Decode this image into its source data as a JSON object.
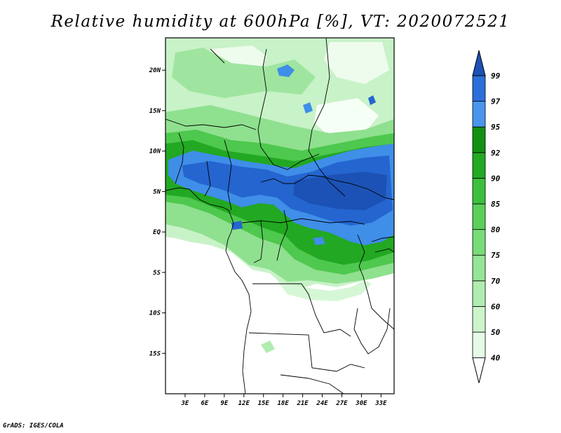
{
  "title": "Relative humidity at 600hPa [%], VT: 2020072521",
  "credit": "GrADS: IGES/COLA",
  "map": {
    "lon_range": [
      0,
      35
    ],
    "lat_range": [
      -20,
      24
    ],
    "lat_ticks": [
      {
        "value": 20,
        "label": "20N"
      },
      {
        "value": 15,
        "label": "15N"
      },
      {
        "value": 10,
        "label": "10N"
      },
      {
        "value": 5,
        "label": "5N"
      },
      {
        "value": 0,
        "label": "EQ"
      },
      {
        "value": -5,
        "label": "5S"
      },
      {
        "value": -10,
        "label": "10S"
      },
      {
        "value": -15,
        "label": "15S"
      }
    ],
    "lon_ticks": [
      {
        "value": 3,
        "label": "3E"
      },
      {
        "value": 6,
        "label": "6E"
      },
      {
        "value": 9,
        "label": "9E"
      },
      {
        "value": 12,
        "label": "12E"
      },
      {
        "value": 15,
        "label": "15E"
      },
      {
        "value": 18,
        "label": "18E"
      },
      {
        "value": 21,
        "label": "21E"
      },
      {
        "value": 24,
        "label": "24E"
      },
      {
        "value": 27,
        "label": "27E"
      },
      {
        "value": 30,
        "label": "30E"
      },
      {
        "value": 33,
        "label": "33E"
      }
    ]
  },
  "colorbar": {
    "levels": [
      "40",
      "50",
      "60",
      "70",
      "75",
      "80",
      "85",
      "90",
      "92",
      "95",
      "97",
      "99"
    ],
    "colors": [
      "#ffffff",
      "#e6fbe6",
      "#ccf5cc",
      "#b0edb0",
      "#95e595",
      "#78dc78",
      "#5ad05a",
      "#3cc03c",
      "#22aa22",
      "#129112",
      "#4a96ee",
      "#2a6fdb",
      "#1c52b5"
    ]
  }
}
